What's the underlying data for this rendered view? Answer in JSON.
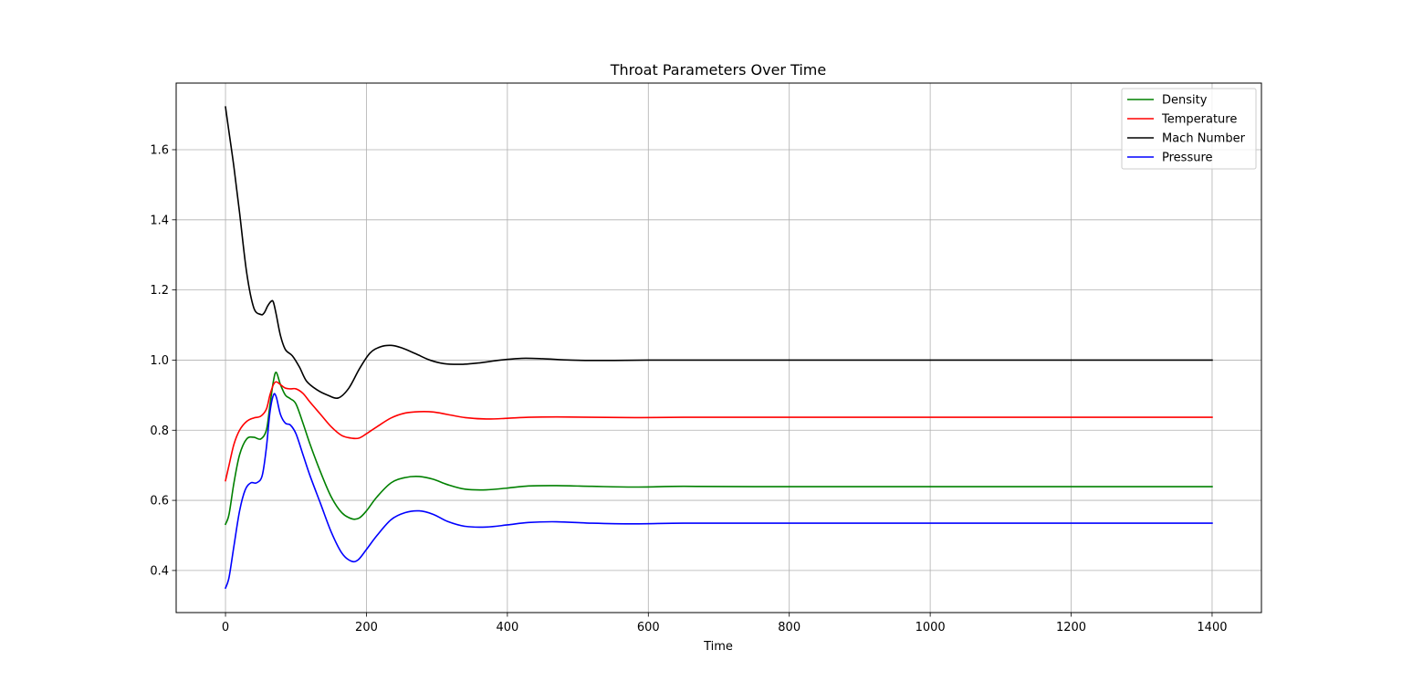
{
  "chart_data": {
    "type": "line",
    "title": "Throat Parameters Over Time",
    "xlabel": "Time",
    "ylabel": "",
    "xlim": [
      -70,
      1470
    ],
    "ylim": [
      0.28,
      1.79
    ],
    "xticks": [
      0,
      200,
      400,
      600,
      800,
      1000,
      1200,
      1400
    ],
    "xtick_labels": [
      "0",
      "200",
      "400",
      "600",
      "800",
      "1000",
      "1200",
      "1400"
    ],
    "yticks": [
      0.4,
      0.6,
      0.8,
      1.0,
      1.2,
      1.4,
      1.6
    ],
    "ytick_labels": [
      "0.4",
      "0.6",
      "0.8",
      "1.0",
      "1.2",
      "1.4",
      "1.6"
    ],
    "grid": true,
    "legend_position": "top-right",
    "series": [
      {
        "name": "Density",
        "color": "#008000",
        "x": [
          0,
          5,
          12,
          20,
          30,
          40,
          50,
          58,
          63,
          68,
          72,
          78,
          85,
          92,
          100,
          110,
          120,
          135,
          150,
          165,
          180,
          190,
          200,
          215,
          235,
          255,
          275,
          295,
          315,
          340,
          370,
          400,
          430,
          470,
          520,
          580,
          650,
          750,
          900,
          1100,
          1400
        ],
        "y": [
          0.532,
          0.56,
          0.65,
          0.73,
          0.775,
          0.78,
          0.775,
          0.8,
          0.87,
          0.94,
          0.965,
          0.93,
          0.9,
          0.89,
          0.875,
          0.82,
          0.76,
          0.68,
          0.61,
          0.565,
          0.547,
          0.55,
          0.57,
          0.61,
          0.65,
          0.665,
          0.668,
          0.66,
          0.645,
          0.632,
          0.63,
          0.635,
          0.641,
          0.642,
          0.64,
          0.638,
          0.64,
          0.639,
          0.639,
          0.639,
          0.639
        ]
      },
      {
        "name": "Temperature",
        "color": "#ff0000",
        "x": [
          0,
          5,
          12,
          20,
          30,
          40,
          50,
          58,
          63,
          68,
          72,
          78,
          85,
          92,
          100,
          110,
          120,
          135,
          150,
          165,
          180,
          190,
          200,
          215,
          235,
          255,
          275,
          295,
          315,
          340,
          370,
          400,
          430,
          470,
          520,
          580,
          650,
          750,
          900,
          1100,
          1400
        ],
        "y": [
          0.656,
          0.7,
          0.76,
          0.8,
          0.825,
          0.835,
          0.84,
          0.86,
          0.9,
          0.93,
          0.938,
          0.93,
          0.92,
          0.918,
          0.918,
          0.905,
          0.88,
          0.845,
          0.81,
          0.785,
          0.777,
          0.778,
          0.79,
          0.81,
          0.835,
          0.849,
          0.853,
          0.852,
          0.845,
          0.836,
          0.832,
          0.834,
          0.837,
          0.838,
          0.837,
          0.836,
          0.837,
          0.837,
          0.837,
          0.837,
          0.837
        ]
      },
      {
        "name": "Mach Number",
        "color": "#000000",
        "x": [
          0,
          5,
          12,
          20,
          30,
          40,
          50,
          55,
          60,
          65,
          68,
          72,
          78,
          85,
          95,
          105,
          115,
          130,
          145,
          160,
          175,
          190,
          205,
          220,
          235,
          250,
          270,
          290,
          310,
          335,
          360,
          390,
          420,
          450,
          490,
          540,
          600,
          700,
          850,
          1100,
          1400
        ],
        "y": [
          1.722,
          1.65,
          1.55,
          1.42,
          1.25,
          1.15,
          1.13,
          1.135,
          1.155,
          1.168,
          1.165,
          1.13,
          1.07,
          1.03,
          1.012,
          0.98,
          0.94,
          0.915,
          0.9,
          0.892,
          0.92,
          0.975,
          1.02,
          1.038,
          1.042,
          1.035,
          1.018,
          1.0,
          0.99,
          0.988,
          0.992,
          1.0,
          1.005,
          1.004,
          1.0,
          0.999,
          1.0,
          1.0,
          1.0,
          1.0,
          1.0
        ]
      },
      {
        "name": "Pressure",
        "color": "#0000ff",
        "x": [
          0,
          5,
          12,
          20,
          28,
          36,
          44,
          52,
          58,
          63,
          68,
          72,
          78,
          85,
          92,
          100,
          110,
          120,
          135,
          150,
          165,
          178,
          188,
          200,
          215,
          235,
          255,
          275,
          295,
          315,
          340,
          370,
          400,
          430,
          470,
          520,
          580,
          650,
          750,
          900,
          1100,
          1400
        ],
        "y": [
          0.35,
          0.38,
          0.47,
          0.57,
          0.63,
          0.65,
          0.65,
          0.67,
          0.75,
          0.85,
          0.9,
          0.895,
          0.845,
          0.82,
          0.815,
          0.79,
          0.73,
          0.67,
          0.59,
          0.51,
          0.45,
          0.427,
          0.43,
          0.46,
          0.5,
          0.545,
          0.565,
          0.57,
          0.56,
          0.54,
          0.526,
          0.524,
          0.53,
          0.537,
          0.539,
          0.535,
          0.533,
          0.535,
          0.535,
          0.535,
          0.535,
          0.535
        ]
      }
    ]
  }
}
